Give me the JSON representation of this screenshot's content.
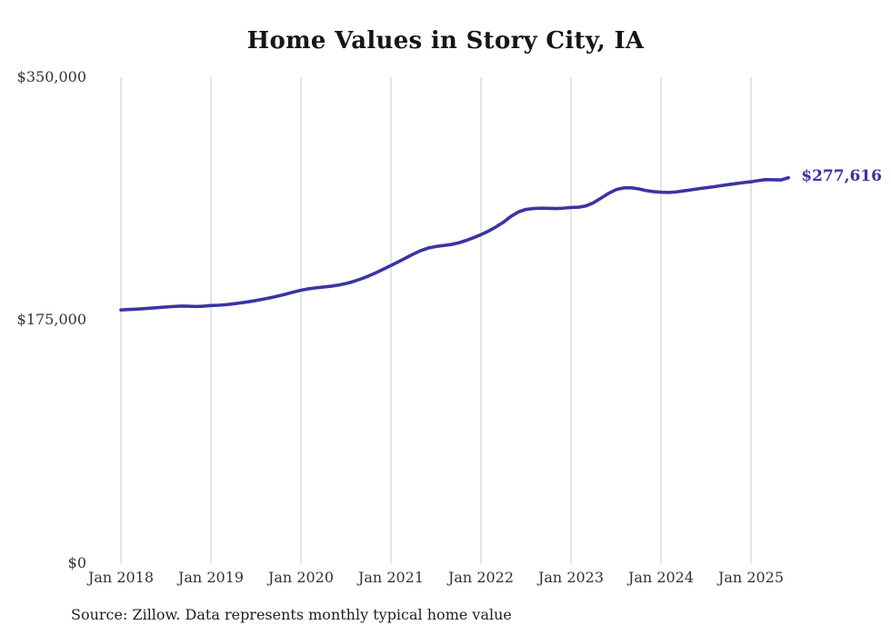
{
  "chart_data": {
    "type": "line",
    "title": "Home Values in Story City, IA",
    "source_note": "Source: Zillow. Data represents monthly typical home value",
    "xlabel": "",
    "ylabel": "",
    "x_start": "2018-01",
    "x_frequency": "monthly",
    "x_tick_labels": [
      "Jan 2018",
      "Jan 2019",
      "Jan 2020",
      "Jan 2021",
      "Jan 2022",
      "Jan 2023",
      "Jan 2024",
      "Jan 2025"
    ],
    "y_tick_labels_top_to_bottom": [
      "$350,000",
      "$175,000",
      "$0"
    ],
    "ylim": [
      0,
      350000
    ],
    "grid": "vertical-at-each-january",
    "legend": "none",
    "line_color": "#3a35a2",
    "gridline_color": "#c9c9c9",
    "last_value_label": "$277,616",
    "last_value": 277616,
    "series": [
      {
        "name": "Typical home value",
        "range": "Jan 2018 - Jun 2025",
        "values": [
          182400,
          182700,
          183000,
          183300,
          183700,
          184100,
          184500,
          184900,
          185200,
          185100,
          184900,
          185100,
          185600,
          185800,
          186200,
          186800,
          187500,
          188300,
          189200,
          190200,
          191300,
          192500,
          193800,
          195300,
          196600,
          197600,
          198300,
          198900,
          199500,
          200300,
          201400,
          202900,
          204700,
          206800,
          209200,
          211800,
          214400,
          217100,
          219900,
          222700,
          225200,
          227000,
          228100,
          228800,
          229500,
          230700,
          232400,
          234400,
          236600,
          239200,
          242200,
          245600,
          249800,
          253000,
          254800,
          255400,
          255700,
          255600,
          255400,
          255700,
          256200,
          256400,
          257300,
          259600,
          262900,
          266300,
          269000,
          270300,
          270400,
          269600,
          268400,
          267600,
          267200,
          267000,
          267400,
          268100,
          268900,
          269700,
          270400,
          271100,
          271900,
          272700,
          273400,
          274100,
          274700,
          275600,
          276300,
          276100,
          276000,
          277616
        ]
      }
    ]
  }
}
